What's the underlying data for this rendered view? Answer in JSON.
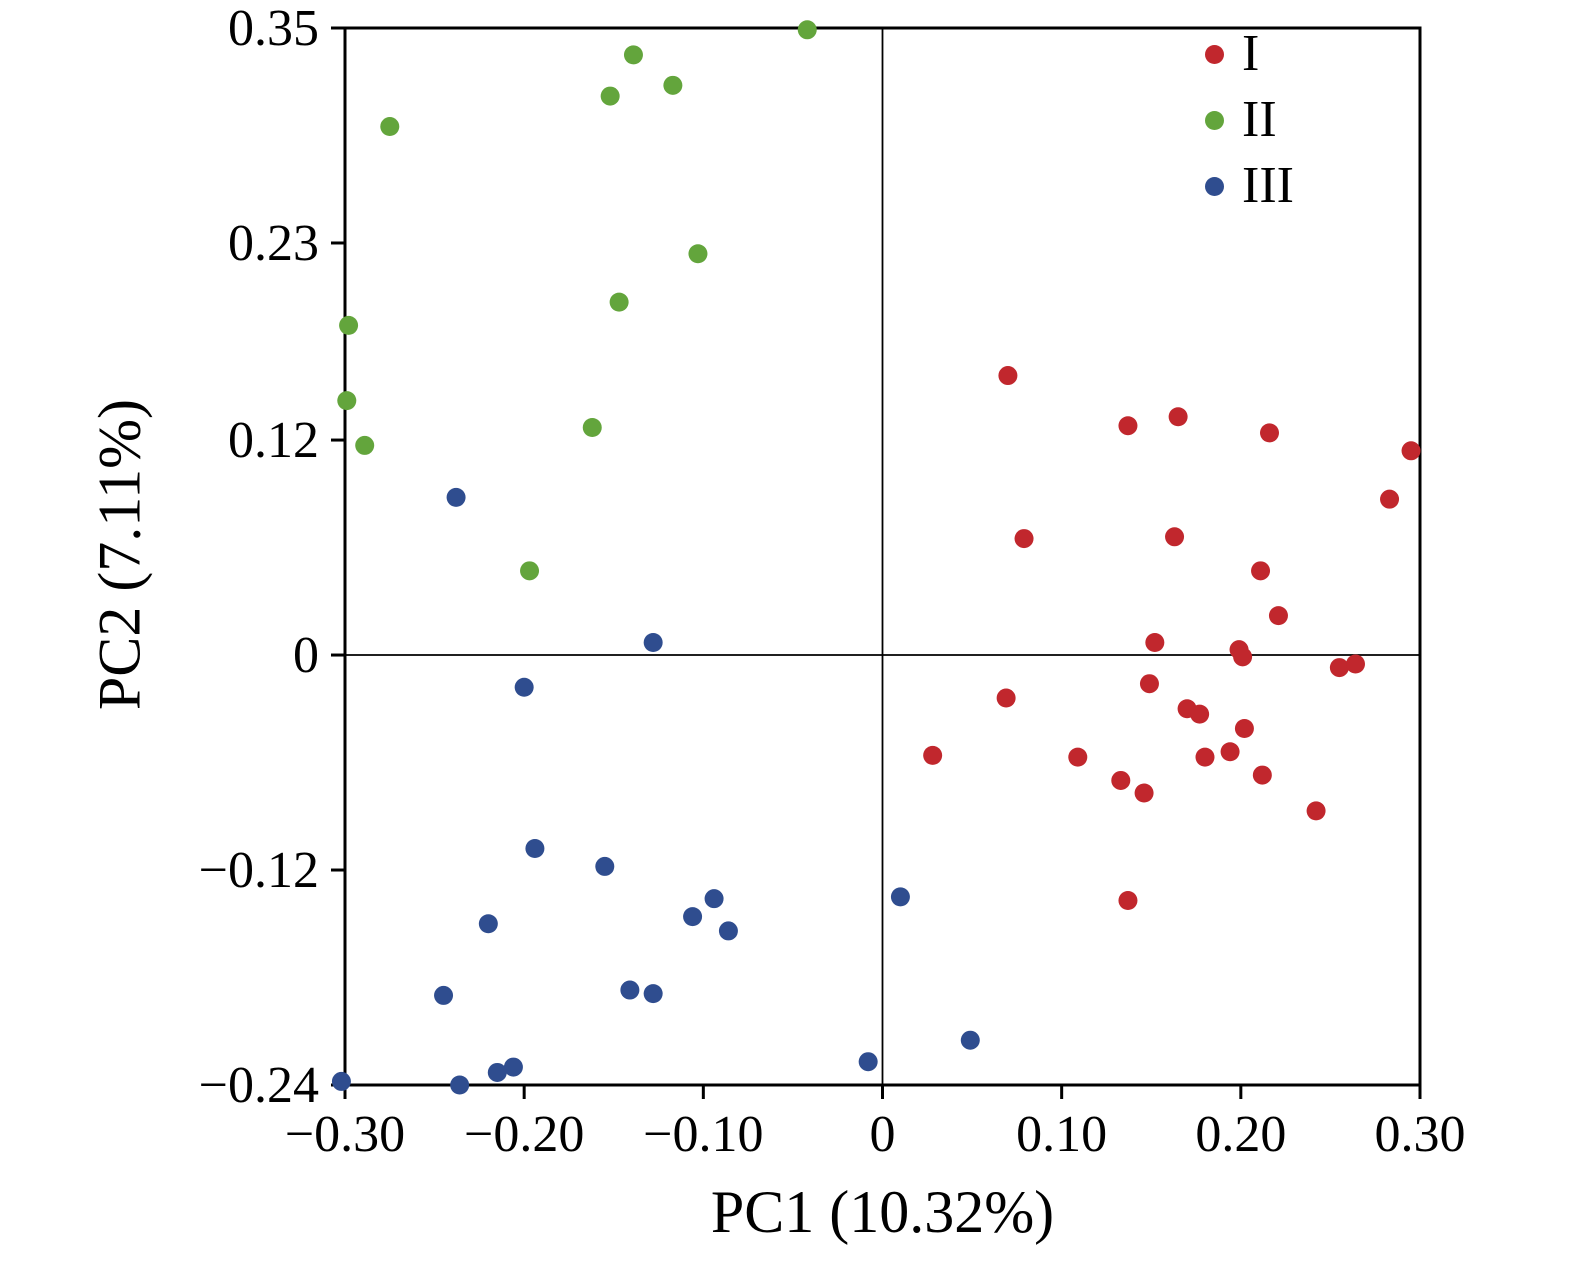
{
  "chart_data": {
    "type": "scatter",
    "title": "",
    "xlabel": "PC1 (10.32%)",
    "ylabel": "PC2 (7.11%)",
    "xlim": [
      -0.3,
      0.3
    ],
    "ylim": [
      -0.24,
      0.35
    ],
    "grid": false,
    "legend_position": "top-right",
    "axis_color": "#000000",
    "x_ticks": {
      "values": [
        -0.3,
        -0.2,
        -0.1,
        0,
        0.1,
        0.2,
        0.3
      ],
      "labels": [
        "−0.30",
        "−0.20",
        "−0.10",
        "0",
        "0.10",
        "0.20",
        "0.30"
      ]
    },
    "y_ticks": {
      "values": [
        0.35,
        0.23,
        0.12,
        0,
        -0.12,
        -0.24
      ],
      "labels": [
        "0.35",
        "0.23",
        "0.12",
        "0",
        "−0.12",
        "−0.24"
      ]
    },
    "zero_lines": true,
    "marker_radius": 9.5,
    "series": [
      {
        "name": "I",
        "color": "#c1272d",
        "points": [
          [
            0.07,
            0.156
          ],
          [
            0.137,
            0.128
          ],
          [
            0.165,
            0.133
          ],
          [
            0.216,
            0.124
          ],
          [
            0.295,
            0.114
          ],
          [
            0.283,
            0.087
          ],
          [
            0.079,
            0.065
          ],
          [
            0.163,
            0.066
          ],
          [
            0.211,
            0.047
          ],
          [
            0.221,
            0.022
          ],
          [
            0.152,
            0.007
          ],
          [
            0.199,
            0.003
          ],
          [
            0.201,
            -0.001
          ],
          [
            0.255,
            -0.007
          ],
          [
            0.264,
            -0.005
          ],
          [
            0.149,
            -0.016
          ],
          [
            0.069,
            -0.024
          ],
          [
            0.17,
            -0.03
          ],
          [
            0.177,
            -0.033
          ],
          [
            0.202,
            -0.041
          ],
          [
            0.028,
            -0.056
          ],
          [
            0.109,
            -0.057
          ],
          [
            0.18,
            -0.057
          ],
          [
            0.194,
            -0.054
          ],
          [
            0.133,
            -0.07
          ],
          [
            0.146,
            -0.077
          ],
          [
            0.212,
            -0.067
          ],
          [
            0.242,
            -0.087
          ],
          [
            0.137,
            -0.137
          ]
        ]
      },
      {
        "name": "II",
        "color": "#63a53c",
        "points": [
          [
            -0.042,
            0.349
          ],
          [
            -0.139,
            0.335
          ],
          [
            -0.152,
            0.312
          ],
          [
            -0.117,
            0.318
          ],
          [
            -0.275,
            0.295
          ],
          [
            -0.103,
            0.224
          ],
          [
            -0.147,
            0.197
          ],
          [
            -0.298,
            0.184
          ],
          [
            -0.299,
            0.142
          ],
          [
            -0.162,
            0.127
          ],
          [
            -0.289,
            0.117
          ],
          [
            -0.197,
            0.047
          ]
        ]
      },
      {
        "name": "III",
        "color": "#2f4d8f",
        "points": [
          [
            -0.238,
            0.088
          ],
          [
            -0.128,
            0.007
          ],
          [
            -0.2,
            -0.018
          ],
          [
            -0.194,
            -0.108
          ],
          [
            -0.155,
            -0.118
          ],
          [
            -0.094,
            -0.136
          ],
          [
            -0.106,
            -0.146
          ],
          [
            -0.086,
            -0.154
          ],
          [
            -0.22,
            -0.15
          ],
          [
            -0.245,
            -0.19
          ],
          [
            -0.141,
            -0.187
          ],
          [
            -0.128,
            -0.189
          ],
          [
            0.01,
            -0.135
          ],
          [
            -0.206,
            -0.23
          ],
          [
            -0.215,
            -0.233
          ],
          [
            -0.302,
            -0.238
          ],
          [
            -0.236,
            -0.24
          ],
          [
            -0.008,
            -0.227
          ],
          [
            0.049,
            -0.215
          ]
        ]
      }
    ]
  }
}
